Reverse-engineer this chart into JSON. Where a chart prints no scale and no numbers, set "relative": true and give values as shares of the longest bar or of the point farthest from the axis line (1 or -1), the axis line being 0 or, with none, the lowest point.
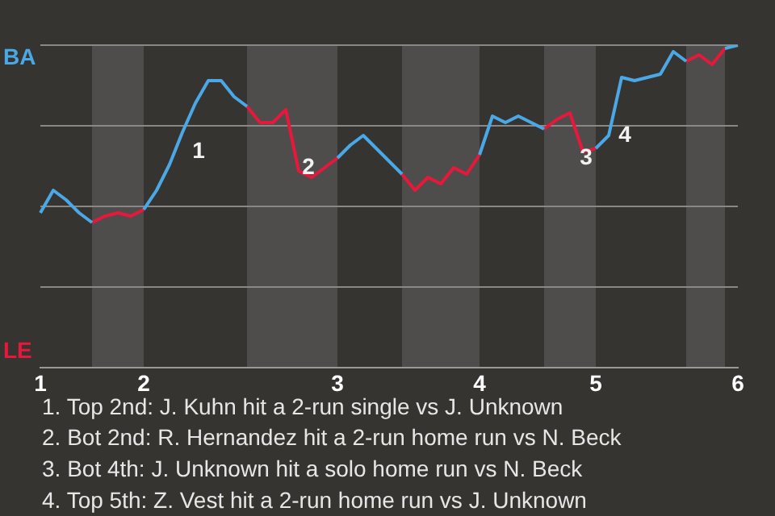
{
  "chart_data": {
    "type": "line",
    "relative": true,
    "categories": [
      "1",
      null,
      null,
      null,
      null,
      null,
      null,
      null,
      "2",
      null,
      null,
      null,
      null,
      null,
      null,
      null,
      null,
      null,
      null,
      null,
      null,
      null,
      null,
      "3",
      null,
      null,
      null,
      null,
      null,
      null,
      null,
      null,
      null,
      null,
      "4",
      null,
      null,
      null,
      null,
      null,
      null,
      null,
      null,
      "5",
      null,
      null,
      null,
      null,
      null,
      null,
      null,
      null,
      null,
      null,
      "6"
    ],
    "series": [
      {
        "name": "BA",
        "color": "#4aa8e6",
        "values": [
          0.48,
          0.55,
          0.52,
          0.48,
          0.45,
          null,
          null,
          null,
          0.49,
          0.55,
          0.63,
          0.73,
          0.82,
          0.89,
          0.89,
          0.84,
          0.81,
          null,
          null,
          null,
          null,
          null,
          null,
          0.65,
          0.69,
          0.72,
          0.68,
          0.64,
          0.6,
          null,
          null,
          null,
          null,
          null,
          0.66,
          0.78,
          0.76,
          0.78,
          0.76,
          0.74,
          null,
          null,
          null,
          0.68,
          0.72,
          0.9,
          0.89,
          0.9,
          0.91,
          0.98,
          0.95,
          null,
          null,
          0.99,
          1
        ]
      },
      {
        "name": "LE",
        "color": "#e8173c",
        "values": [
          null,
          null,
          null,
          null,
          0.45,
          0.47,
          0.48,
          0.47,
          0.49,
          null,
          null,
          null,
          null,
          null,
          null,
          null,
          0.81,
          0.76,
          0.76,
          0.8,
          0.61,
          0.59,
          0.62,
          0.65,
          null,
          null,
          null,
          null,
          0.6,
          0.55,
          0.59,
          0.57,
          0.62,
          0.6,
          0.66,
          null,
          null,
          null,
          null,
          0.74,
          0.77,
          0.79,
          0.67,
          0.68,
          null,
          null,
          null,
          null,
          null,
          null,
          0.95,
          0.97,
          0.94,
          0.99,
          null
        ]
      }
    ],
    "grid": "y",
    "marker": "none",
    "line_style": "solid",
    "legend": "left",
    "annotations": [
      "1",
      "2",
      "3",
      "4",
      "1. Top 2nd: J. Kuhn hit a 2-run single vs J. Unknown",
      "2. Bot 2nd: R. Hernandez hit a 2-run home run vs N. Beck",
      "3. Bot 4th: J. Unknown hit a solo home run vs N. Beck",
      "4. Top 5th: Z. Vest hit a 2-run home run vs J. Unknown"
    ]
  }
}
